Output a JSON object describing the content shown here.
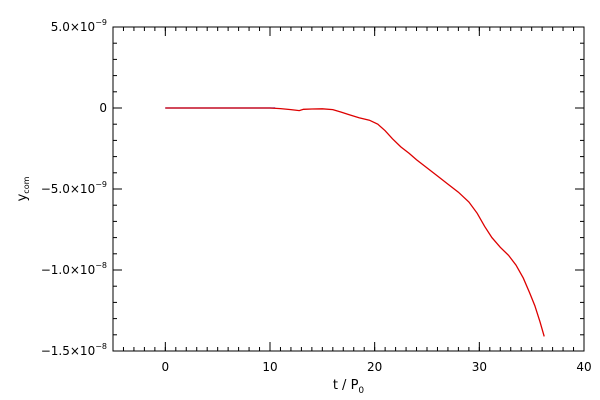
{
  "chart_data": {
    "type": "line",
    "xlabel": "t / P",
    "xlabel_sub": "0",
    "ylabel": "y",
    "ylabel_sub": "com",
    "xlim": [
      -5,
      40
    ],
    "ylim": [
      -1.5e-08,
      5e-09
    ],
    "x_ticks": [
      {
        "value": 0,
        "label": "0"
      },
      {
        "value": 10,
        "label": "10"
      },
      {
        "value": 20,
        "label": "20"
      },
      {
        "value": 30,
        "label": "30"
      },
      {
        "value": 40,
        "label": "40"
      }
    ],
    "y_ticks": [
      {
        "value": 5e-09,
        "label": "5.0×10",
        "exp": "−9"
      },
      {
        "value": 0,
        "label": "0",
        "exp": ""
      },
      {
        "value": -5e-09,
        "label": "−5.0×10",
        "exp": "−9"
      },
      {
        "value": -1e-08,
        "label": "−1.0×10",
        "exp": "−8"
      },
      {
        "value": -1.5e-08,
        "label": "−1.5×10",
        "exp": "−8"
      }
    ],
    "x_minor_step": 1,
    "y_minor_step": 1e-09,
    "colors": {
      "axes": "#000000",
      "series_early": "#0000cc",
      "series_main": "#dd0000"
    },
    "series": [
      {
        "color": "#0000cc",
        "x": [
          0,
          2,
          4,
          6,
          8,
          10,
          10.5
        ],
        "y": [
          0,
          0,
          0,
          0,
          0,
          0,
          0
        ]
      },
      {
        "color": "#dd0000",
        "x": [
          0,
          5,
          10,
          11,
          12,
          12.8,
          13.2,
          14,
          15,
          16,
          16.8,
          17.5,
          18.5,
          19.5,
          20.3,
          21,
          21.7,
          22.5,
          23.3,
          24,
          25,
          26,
          27,
          28,
          29,
          29.8,
          30.5,
          31.2,
          32,
          32.8,
          33.5,
          34.2,
          34.8,
          35.3,
          35.8,
          36.2
        ],
        "y": [
          0,
          0,
          0,
          -4e-11,
          -1e-10,
          -1.6e-10,
          -8e-11,
          -6e-11,
          -5e-11,
          -1e-10,
          -2.5e-10,
          -4e-10,
          -6e-10,
          -7.5e-10,
          -1e-09,
          -1.4e-09,
          -1.9e-09,
          -2.4e-09,
          -2.8e-09,
          -3.2e-09,
          -3.7e-09,
          -4.2e-09,
          -4.7e-09,
          -5.2e-09,
          -5.8e-09,
          -6.5e-09,
          -7.3e-09,
          -8e-09,
          -8.6e-09,
          -9.1e-09,
          -9.7e-09,
          -1.05e-08,
          -1.14e-08,
          -1.22e-08,
          -1.32e-08,
          -1.41e-08
        ]
      }
    ]
  }
}
